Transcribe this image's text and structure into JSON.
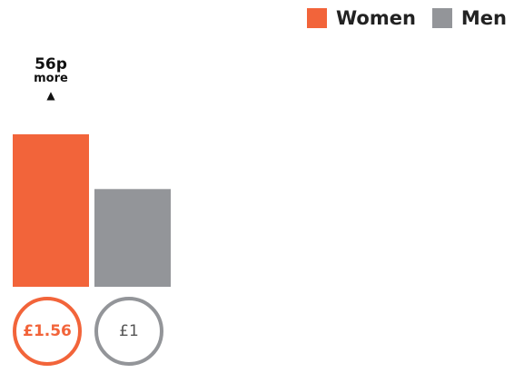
{
  "legend": [
    {
      "label": "Women",
      "color": "#F2643A"
    },
    {
      "label": "Men",
      "color": "#939599"
    }
  ],
  "annotation": {
    "amount": "56p",
    "text": "more"
  },
  "chart_data": {
    "type": "bar",
    "categories": [
      "Women",
      "Men"
    ],
    "values": [
      1.56,
      1.0
    ],
    "value_labels": [
      "£1.56",
      "£1"
    ],
    "colors": [
      "#F2643A",
      "#939599"
    ],
    "title": "",
    "xlabel": "",
    "ylabel": "",
    "ylim": [
      0,
      1.56
    ],
    "grid": false,
    "legend_position": "top-right"
  }
}
